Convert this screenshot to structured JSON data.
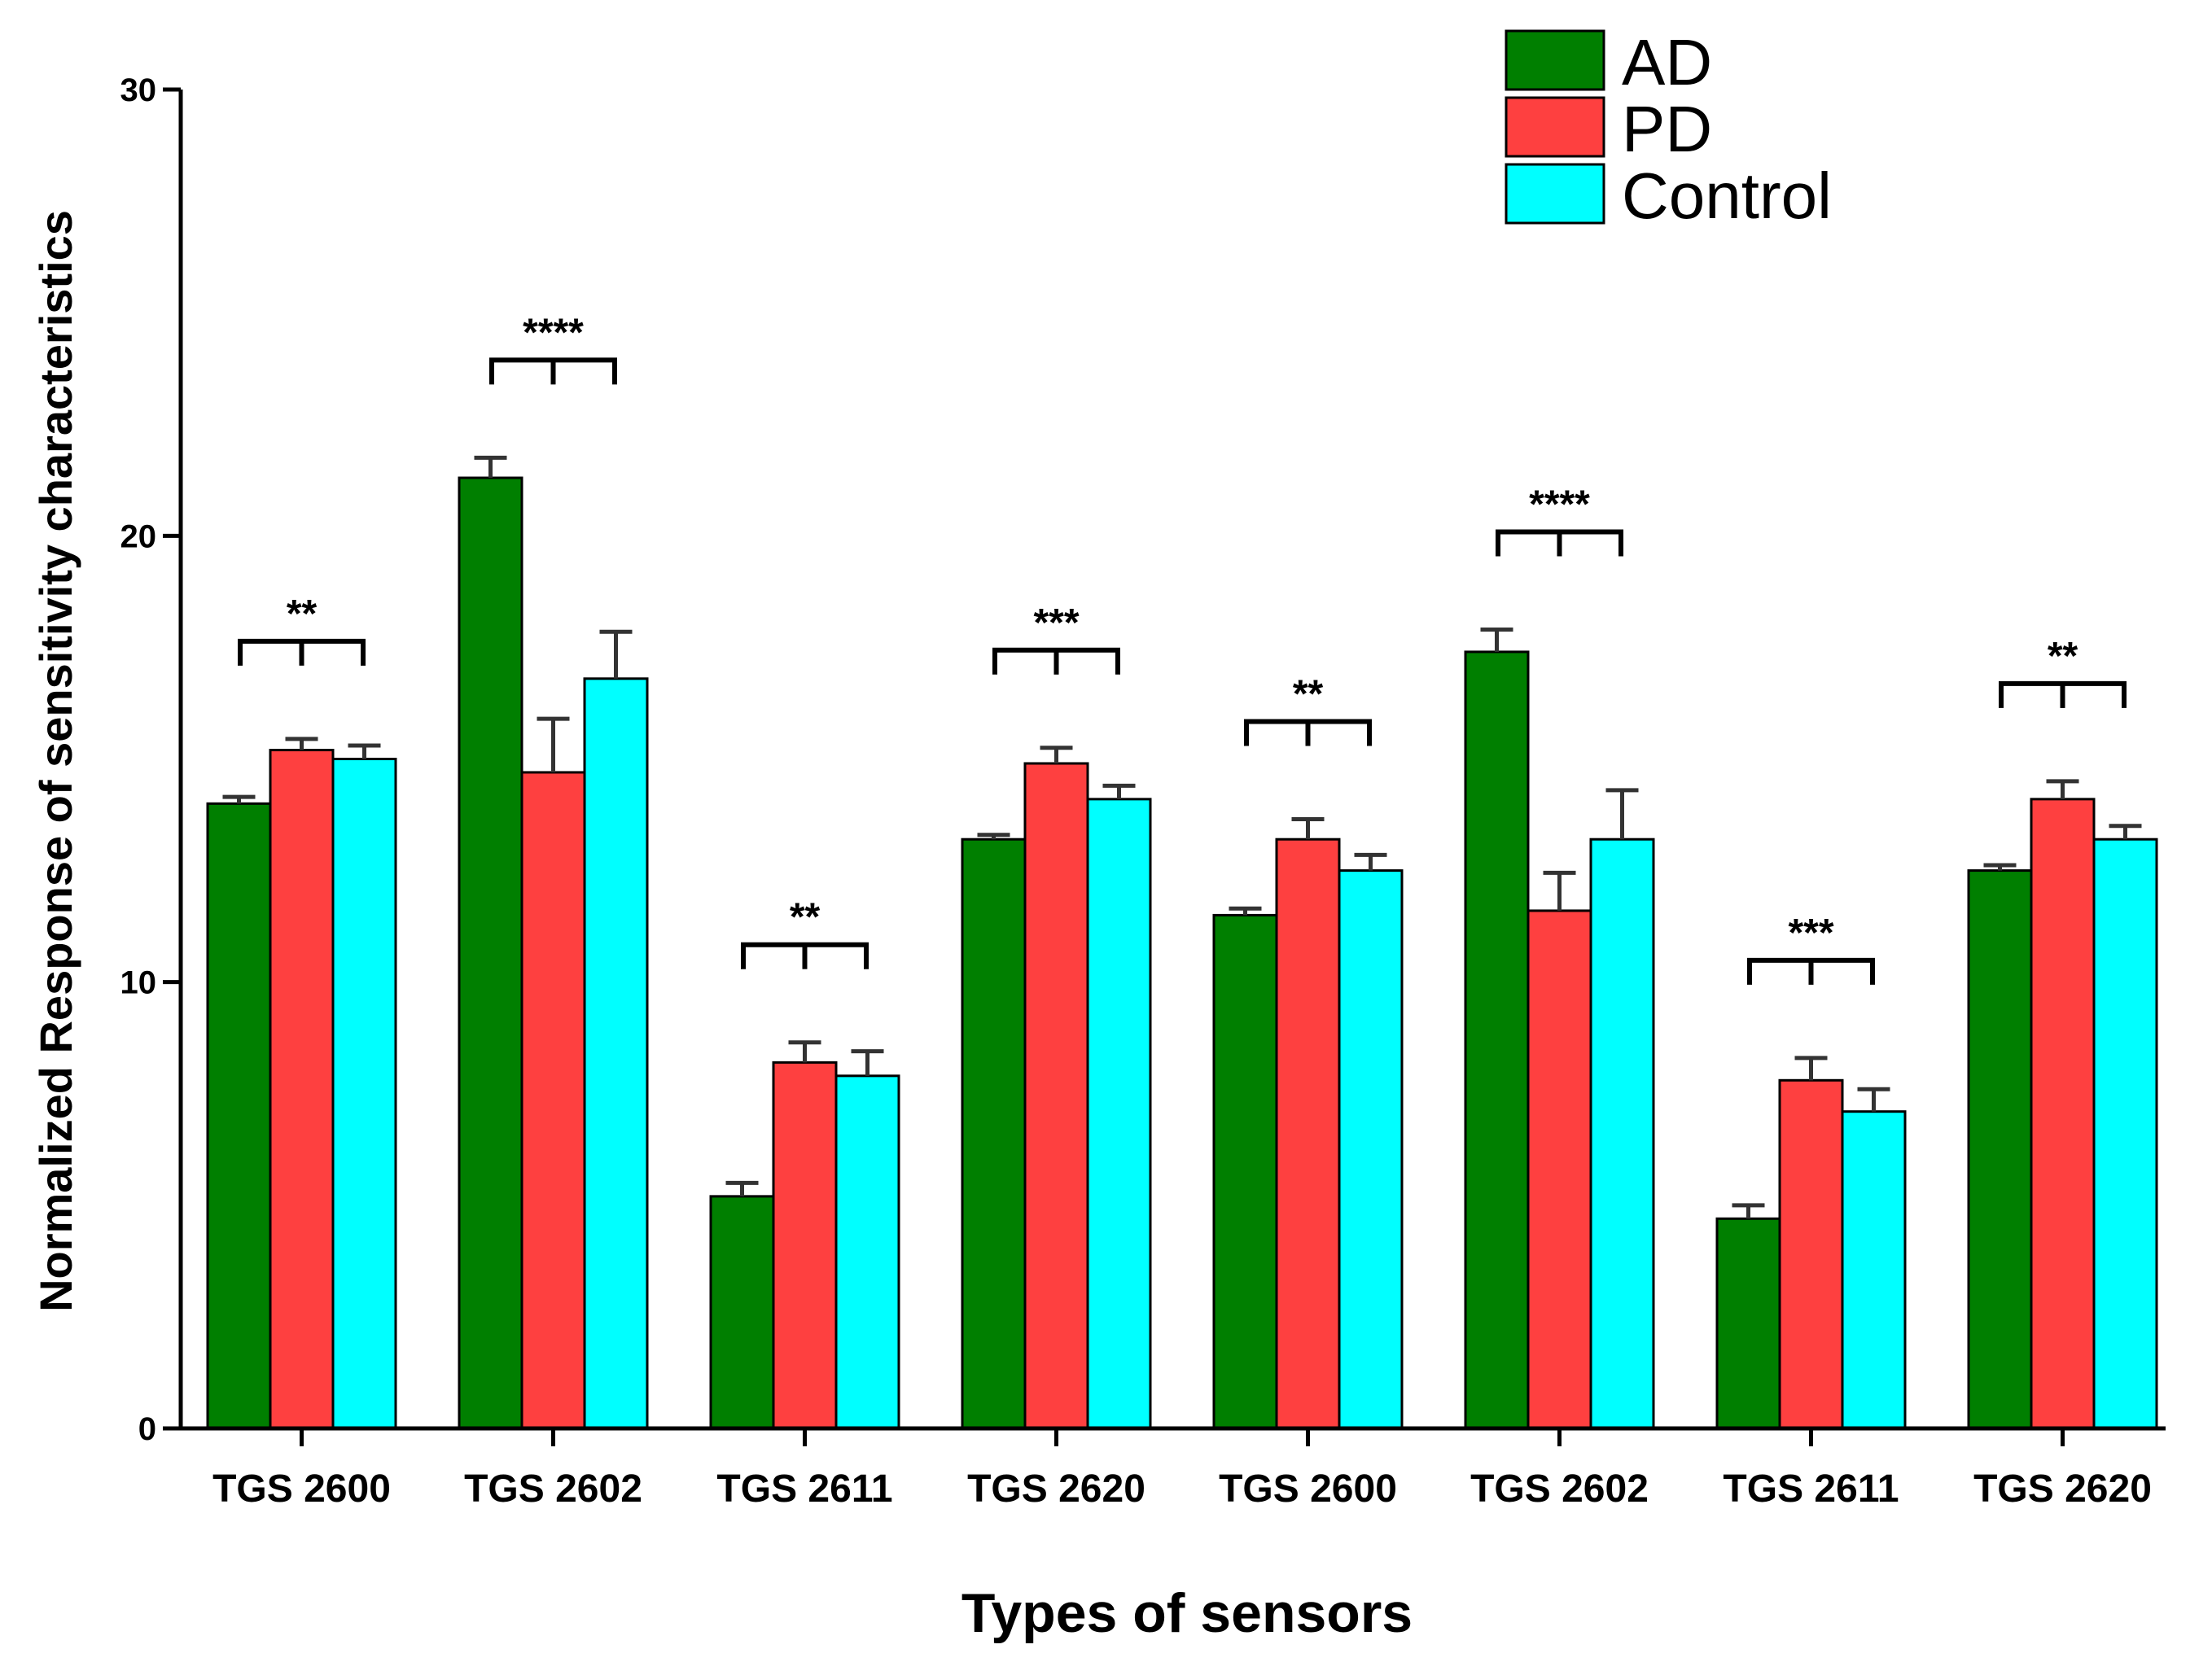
{
  "chart_data": {
    "type": "bar",
    "title": "",
    "xlabel": "Types of sensors",
    "ylabel": "Normalized Response  of sensitivity characteristics",
    "ylim": [
      0,
      30
    ],
    "yticks": [
      0,
      10,
      20,
      30
    ],
    "categories": [
      "TGS 2600",
      "TGS 2602",
      "TGS 2611",
      "TGS 2620",
      "TGS 2600",
      "TGS 2602",
      "TGS 2611",
      "TGS 2620"
    ],
    "series": [
      {
        "name": "AD",
        "color": "#007f00",
        "values": [
          14.0,
          21.3,
          5.2,
          13.2,
          11.5,
          17.4,
          4.7,
          12.5
        ],
        "errors": [
          0.15,
          0.45,
          0.3,
          0.1,
          0.15,
          0.5,
          0.3,
          0.12
        ]
      },
      {
        "name": "PD",
        "color": "#fe4040",
        "values": [
          15.2,
          14.7,
          8.2,
          14.9,
          13.2,
          11.6,
          7.8,
          14.1
        ],
        "errors": [
          0.25,
          1.2,
          0.45,
          0.35,
          0.45,
          0.85,
          0.5,
          0.4
        ]
      },
      {
        "name": "Control",
        "color": "#00ffff",
        "values": [
          15.0,
          16.8,
          7.9,
          14.1,
          12.5,
          13.2,
          7.1,
          13.2
        ],
        "errors": [
          0.3,
          1.05,
          0.55,
          0.3,
          0.35,
          1.1,
          0.5,
          0.3
        ]
      }
    ],
    "significance": [
      "**",
      "****",
      "**",
      "***",
      "**",
      "****",
      "***",
      "**"
    ],
    "legend_position": "top-right"
  }
}
